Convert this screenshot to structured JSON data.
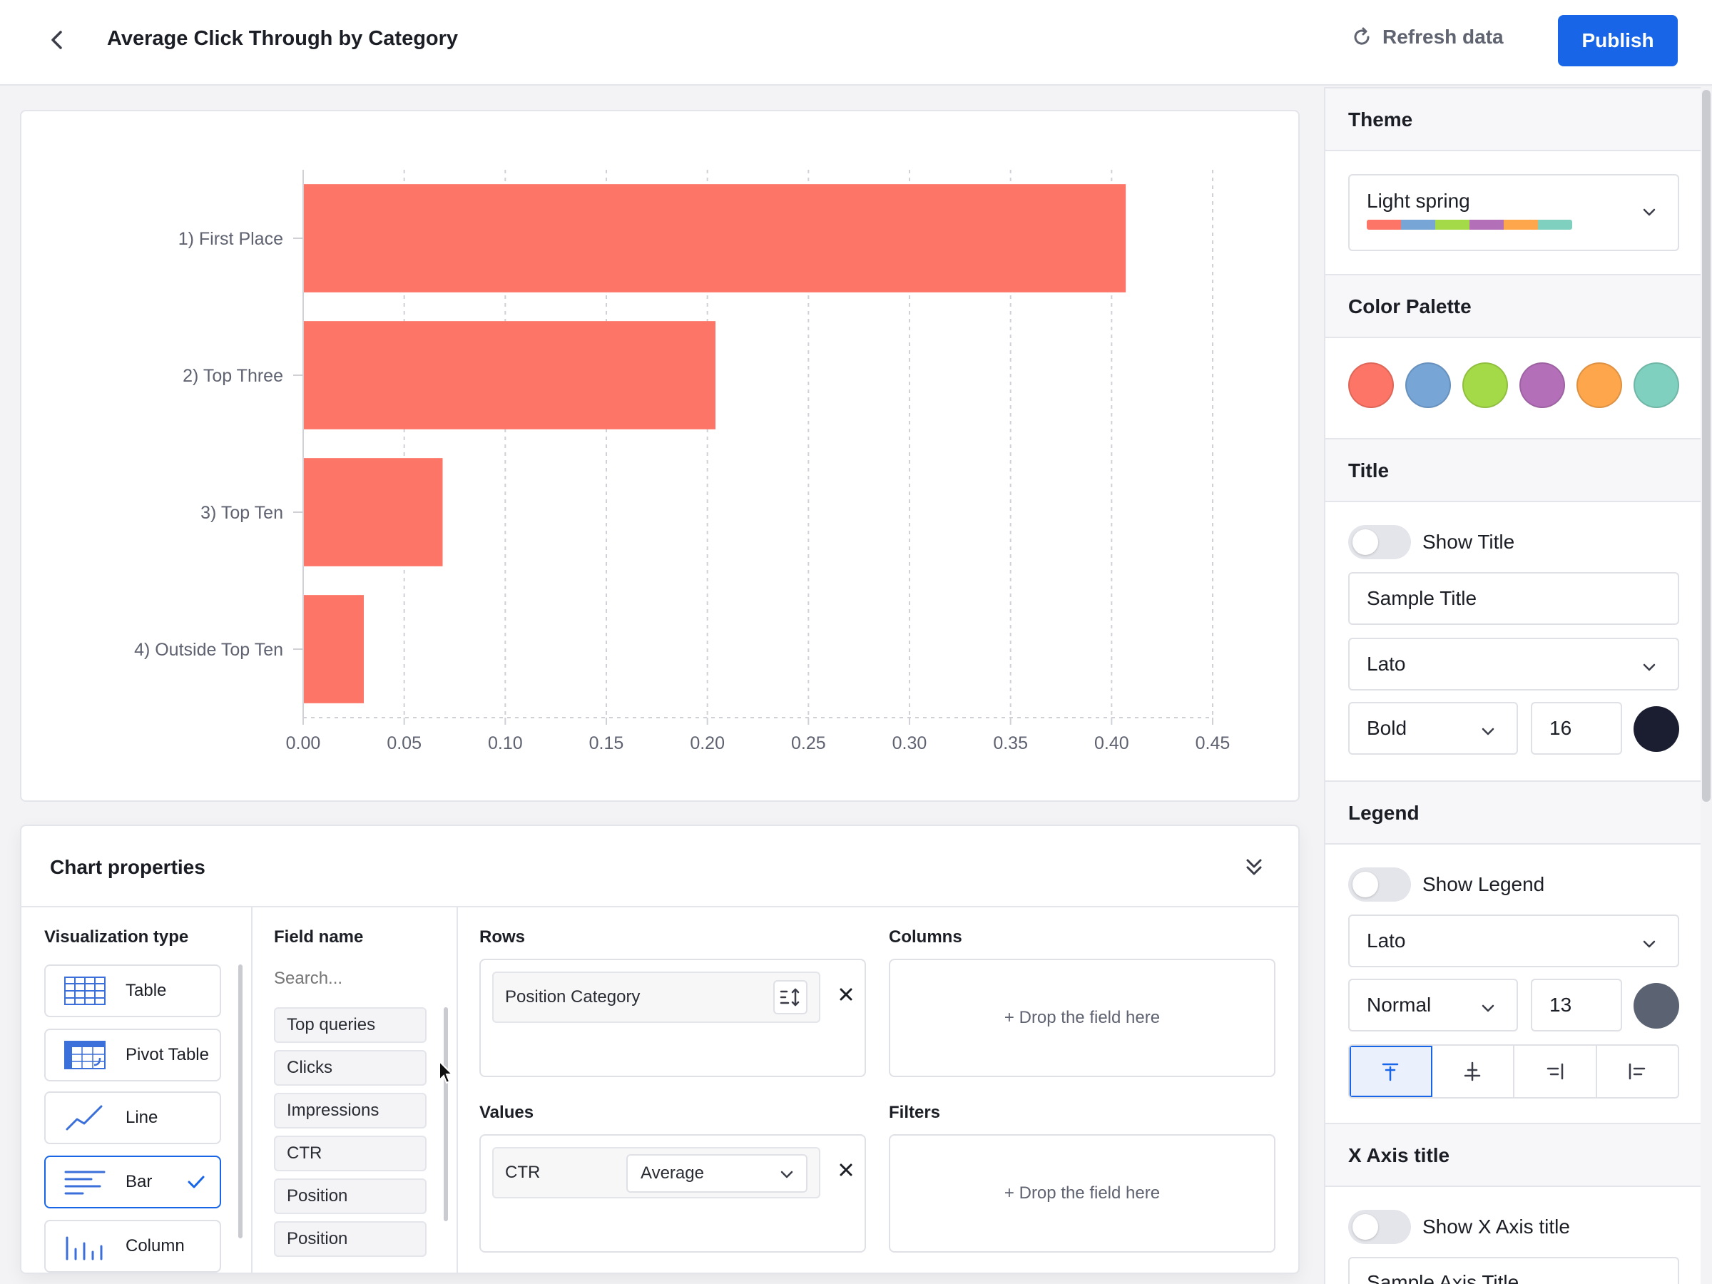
{
  "header": {
    "title": "Average Click Through by Category",
    "refresh_label": "Refresh data",
    "publish_label": "Publish"
  },
  "chart_data": {
    "type": "bar",
    "orientation": "horizontal",
    "categories": [
      "1) First Place",
      "2) Top Three",
      "3) Top Ten",
      "4) Outside Top Ten"
    ],
    "values": [
      0.407,
      0.204,
      0.069,
      0.03
    ],
    "title": "",
    "xlabel": "",
    "ylabel": "",
    "xlim": [
      0,
      0.45
    ],
    "xticks": [
      "0.00",
      "0.05",
      "0.10",
      "0.15",
      "0.20",
      "0.25",
      "0.30",
      "0.35",
      "0.40",
      "0.45"
    ],
    "grid": "vertical dashed",
    "bar_color": "#fc7566"
  },
  "props": {
    "title": "Chart properties",
    "viz_label": "Visualization type",
    "viz_types": [
      {
        "label": "Table",
        "icon": "table-icon"
      },
      {
        "label": "Pivot Table",
        "icon": "pivot-table-icon"
      },
      {
        "label": "Line",
        "icon": "line-chart-icon"
      },
      {
        "label": "Bar",
        "icon": "bar-chart-icon",
        "selected": true
      },
      {
        "label": "Column",
        "icon": "column-chart-icon"
      }
    ],
    "field_label": "Field name",
    "search_placeholder": "Search...",
    "fields": [
      "Top queries",
      "Clicks",
      "Impressions",
      "CTR",
      "Position",
      "Position"
    ],
    "rows_label": "Rows",
    "rows_field": "Position Category",
    "columns_label": "Columns",
    "columns_hint": "+ Drop the field here",
    "values_label": "Values",
    "values_field": "CTR",
    "values_agg": "Average",
    "filters_label": "Filters",
    "filters_hint": "+ Drop the field here"
  },
  "side": {
    "theme_label": "Theme",
    "theme_value": "Light spring",
    "theme_colors": [
      "#fc7566",
      "#76a5d6",
      "#a4da48",
      "#b370b8",
      "#fda64c",
      "#7fd0be"
    ],
    "palette_label": "Color Palette",
    "palette": [
      "#fc7566",
      "#76a5d6",
      "#a4da48",
      "#b370b8",
      "#fda64c",
      "#7fd0be"
    ],
    "title_section": "Title",
    "show_title": "Show Title",
    "title_text": "Sample Title",
    "title_font": "Lato",
    "title_weight": "Bold",
    "title_size": "16",
    "title_color": "#1b1e30",
    "legend_section": "Legend",
    "show_legend": "Show Legend",
    "legend_font": "Lato",
    "legend_weight": "Normal",
    "legend_size": "13",
    "legend_color": "#5b6372",
    "xaxis_section": "X Axis title",
    "show_xaxis": "Show X Axis title",
    "xaxis_text": "Sample Axis Title"
  }
}
